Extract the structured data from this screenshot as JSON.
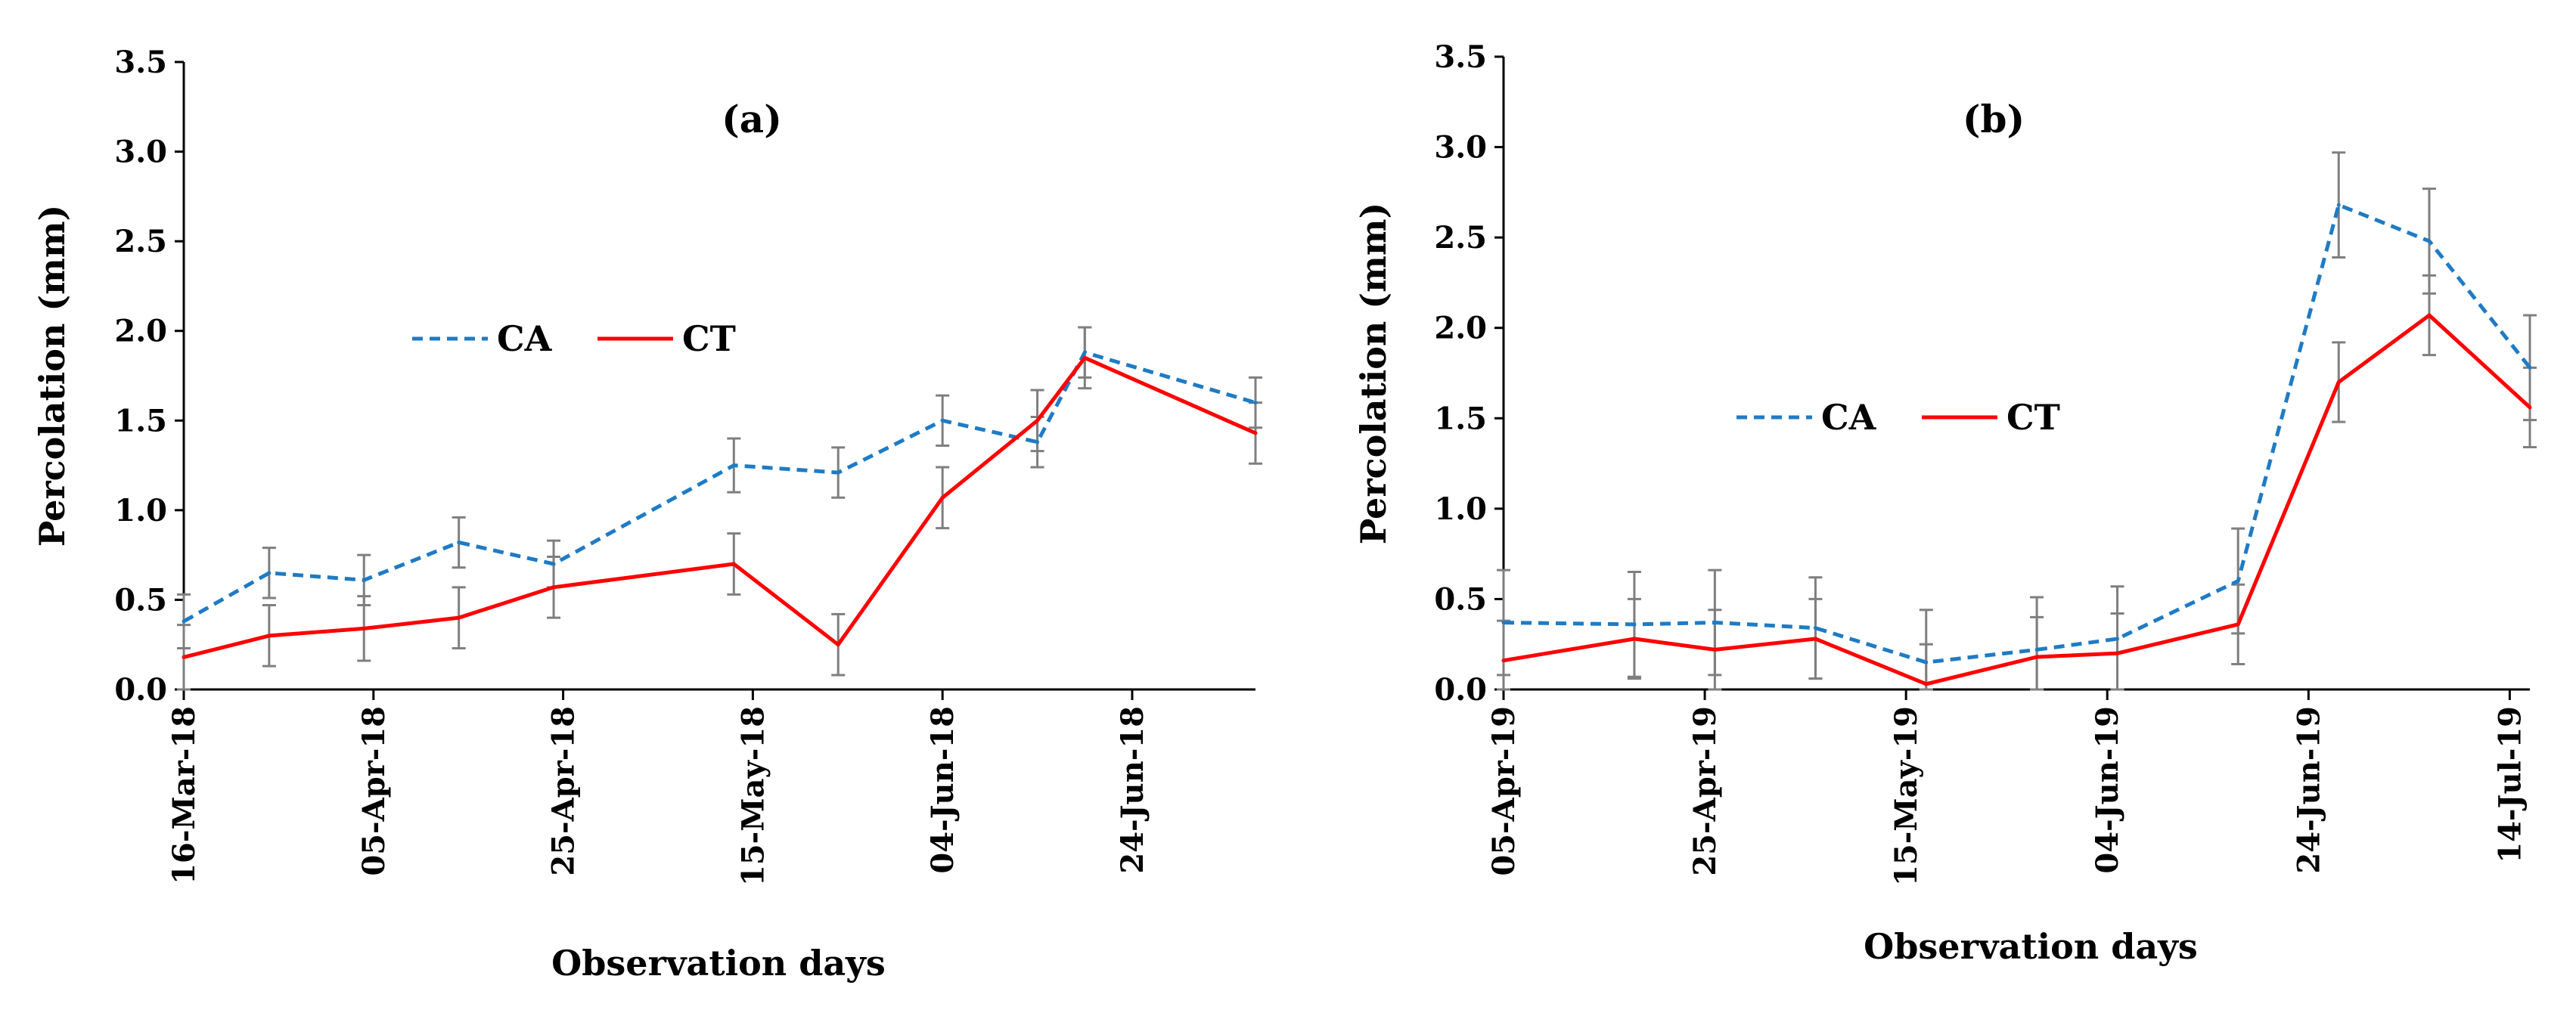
{
  "chart_data": [
    {
      "type": "line",
      "title": "(a)",
      "xlabel": "Observation days",
      "ylabel": "Percolation (mm)",
      "ylim": [
        0,
        3.5
      ],
      "yticks": [
        "0.0",
        "0.5",
        "1.0",
        "1.5",
        "2.0",
        "2.5",
        "3.0",
        "3.5"
      ],
      "xlim_day": [
        0,
        113
      ],
      "xticks": [
        {
          "label": "16-Mar-18",
          "day": 0
        },
        {
          "label": "05-Apr-18",
          "day": 20
        },
        {
          "label": "25-Apr-18",
          "day": 40
        },
        {
          "label": "15-May-18",
          "day": 60
        },
        {
          "label": "04-Jun-18",
          "day": 80
        },
        {
          "label": "24-Jun-18",
          "day": 100
        }
      ],
      "series": [
        {
          "name": "CA",
          "color": "#1f7bc4",
          "dash": true,
          "x": [
            0,
            9,
            19,
            29,
            39,
            58,
            69,
            80,
            90,
            95,
            113
          ],
          "y": [
            0.38,
            0.65,
            0.61,
            0.82,
            0.7,
            1.25,
            1.21,
            1.5,
            1.38,
            1.88,
            1.6
          ],
          "err": [
            0.15,
            0.14,
            0.14,
            0.14,
            0.13,
            0.15,
            0.14,
            0.14,
            0.14,
            0.14,
            0.14
          ]
        },
        {
          "name": "CT",
          "color": "#ff0000",
          "dash": false,
          "x": [
            0,
            9,
            19,
            29,
            39,
            58,
            69,
            80,
            90,
            95,
            113
          ],
          "y": [
            0.18,
            0.3,
            0.34,
            0.4,
            0.57,
            0.7,
            0.25,
            1.07,
            1.5,
            1.85,
            1.43
          ],
          "err": [
            0.18,
            0.17,
            0.18,
            0.17,
            0.17,
            0.17,
            0.17,
            0.17,
            0.17,
            0.17,
            0.17
          ]
        }
      ],
      "legend": "center"
    },
    {
      "type": "line",
      "title": "(b)",
      "xlabel": "Observation days",
      "ylabel": "Percolation (mm)",
      "ylim": [
        0,
        3.5
      ],
      "yticks": [
        "0.0",
        "0.5",
        "1.0",
        "1.5",
        "2.0",
        "2.5",
        "3.0",
        "3.5"
      ],
      "xlim_day": [
        0,
        102
      ],
      "xticks": [
        {
          "label": "05-Apr-19",
          "day": 0
        },
        {
          "label": "25-Apr-19",
          "day": 20
        },
        {
          "label": "15-May-19",
          "day": 40
        },
        {
          "label": "04-Jun-19",
          "day": 60
        },
        {
          "label": "24-Jun-19",
          "day": 80
        },
        {
          "label": "14-Jul-19",
          "day": 100
        }
      ],
      "series": [
        {
          "name": "CA",
          "color": "#1f7bc4",
          "dash": true,
          "x": [
            0,
            13,
            21,
            31,
            42,
            53,
            61,
            73,
            83,
            92,
            102
          ],
          "y": [
            0.37,
            0.36,
            0.37,
            0.34,
            0.15,
            0.22,
            0.28,
            0.6,
            2.68,
            2.48,
            1.78
          ],
          "err": [
            0.29,
            0.29,
            0.29,
            0.28,
            0.29,
            0.29,
            0.29,
            0.29,
            0.29,
            0.29,
            0.29
          ]
        },
        {
          "name": "CT",
          "color": "#ff0000",
          "dash": false,
          "x": [
            0,
            13,
            21,
            31,
            42,
            53,
            61,
            73,
            83,
            92,
            102
          ],
          "y": [
            0.16,
            0.28,
            0.22,
            0.28,
            0.03,
            0.18,
            0.2,
            0.36,
            1.7,
            2.07,
            1.56
          ],
          "err": [
            0.22,
            0.22,
            0.22,
            0.22,
            0.22,
            0.22,
            0.22,
            0.22,
            0.22,
            0.22,
            0.22
          ]
        }
      ],
      "legend": "center-left"
    }
  ]
}
